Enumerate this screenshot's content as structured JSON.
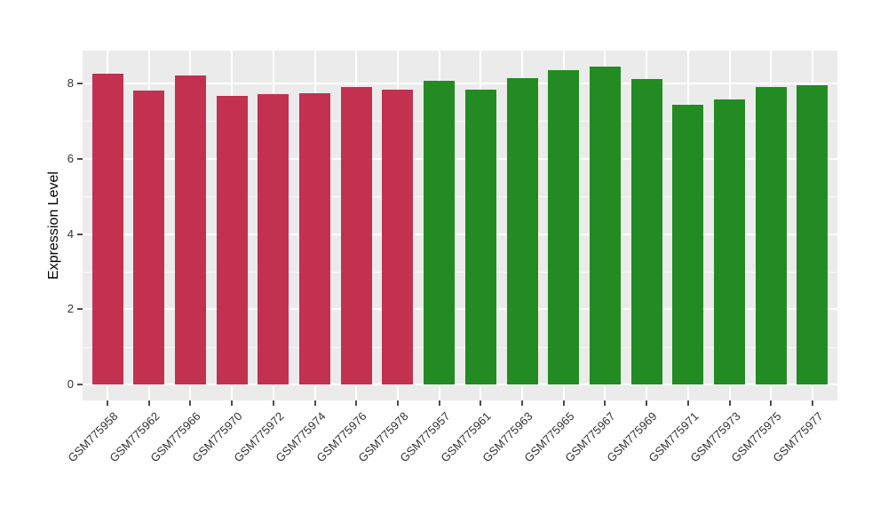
{
  "chart_data": {
    "type": "bar",
    "title": "",
    "xlabel": "",
    "ylabel": "Expression Level",
    "legend": "none",
    "grid": "on",
    "panel_bg": "#EBEBEB",
    "grid_color": "#FFFFFF",
    "axis_text_color": "#333333",
    "tick_mark_color": "#4D4D4D",
    "ylim": [
      0,
      8.87
    ],
    "yticks": [
      0,
      2,
      4,
      6,
      8
    ],
    "y_minor_ticks": [
      1,
      3,
      5,
      7
    ],
    "colors": {
      "group1": "#C23150",
      "group2": "#228B22"
    },
    "bars": [
      {
        "label": "GSM775958",
        "value": 8.27,
        "group": "group1"
      },
      {
        "label": "GSM775962",
        "value": 7.82,
        "group": "group1"
      },
      {
        "label": "GSM775966",
        "value": 8.21,
        "group": "group1"
      },
      {
        "label": "GSM775970",
        "value": 7.66,
        "group": "group1"
      },
      {
        "label": "GSM775972",
        "value": 7.72,
        "group": "group1"
      },
      {
        "label": "GSM775974",
        "value": 7.75,
        "group": "group1"
      },
      {
        "label": "GSM775976",
        "value": 7.9,
        "group": "group1"
      },
      {
        "label": "GSM775978",
        "value": 7.83,
        "group": "group1"
      },
      {
        "label": "GSM775957",
        "value": 8.07,
        "group": "group2"
      },
      {
        "label": "GSM775961",
        "value": 7.83,
        "group": "group2"
      },
      {
        "label": "GSM775963",
        "value": 8.14,
        "group": "group2"
      },
      {
        "label": "GSM775965",
        "value": 8.35,
        "group": "group2"
      },
      {
        "label": "GSM775967",
        "value": 8.45,
        "group": "group2"
      },
      {
        "label": "GSM775969",
        "value": 8.11,
        "group": "group2"
      },
      {
        "label": "GSM775971",
        "value": 7.44,
        "group": "group2"
      },
      {
        "label": "GSM775973",
        "value": 7.57,
        "group": "group2"
      },
      {
        "label": "GSM775975",
        "value": 7.91,
        "group": "group2"
      },
      {
        "label": "GSM775977",
        "value": 7.96,
        "group": "group2"
      }
    ]
  }
}
